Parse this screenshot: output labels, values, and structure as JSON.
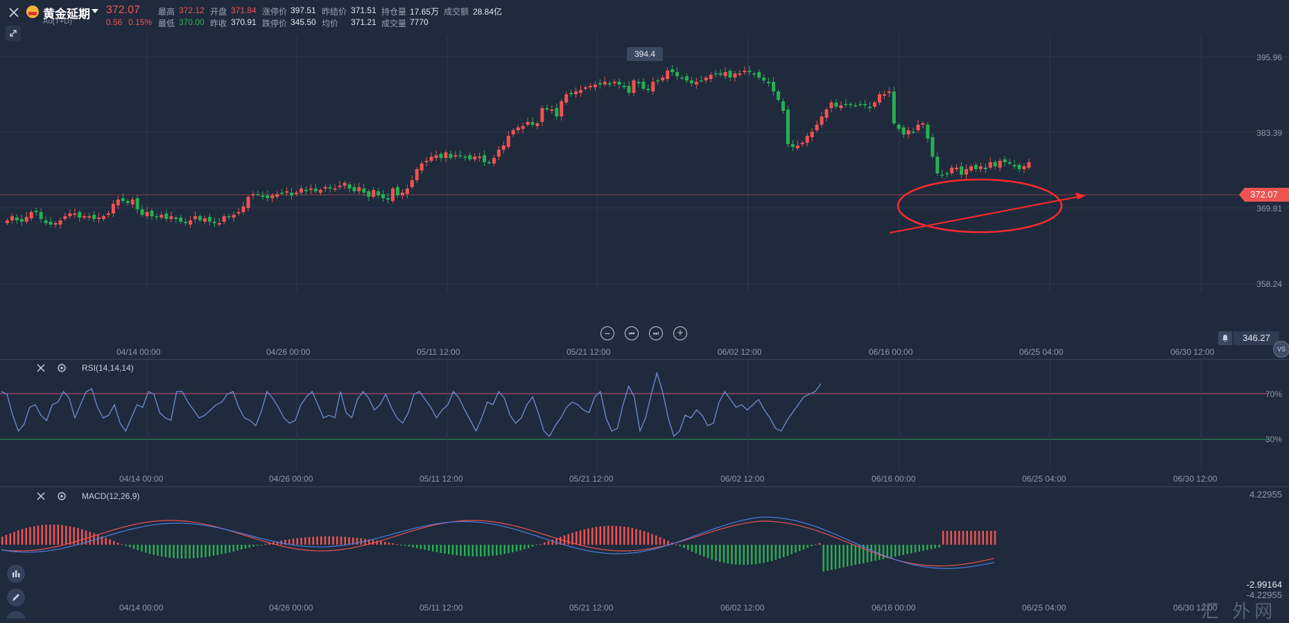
{
  "header": {
    "title": "黄金延期",
    "code": "Au(T+D)",
    "last_price": "372.07",
    "change": "0.56",
    "change_pct": "0.15%",
    "stats": [
      {
        "label": "最高",
        "value": "372.12",
        "color": "up"
      },
      {
        "label": "开盘",
        "value": "371.84",
        "color": "up"
      },
      {
        "label": "涨停价",
        "value": "397.51",
        "color": "neutral"
      },
      {
        "label": "昨结价",
        "value": "371.51",
        "color": "neutral"
      },
      {
        "label": "持仓量",
        "value": "17.65万",
        "color": "neutral"
      },
      {
        "label": "成交额",
        "value": "28.84亿",
        "color": "neutral"
      },
      {
        "label": "最低",
        "value": "370.00",
        "color": "dn"
      },
      {
        "label": "昨收",
        "value": "370.91",
        "color": "neutral"
      },
      {
        "label": "跌停价",
        "value": "345.50",
        "color": "neutral"
      },
      {
        "label": "均价",
        "value": "371.21",
        "color": "neutral"
      },
      {
        "label": "成交量",
        "value": "7770",
        "color": "neutral"
      }
    ]
  },
  "main_chart": {
    "y_ticks": [
      "395.96",
      "383.39",
      "369.81",
      "358.24"
    ],
    "current_price_tag": "372.07",
    "bottom_price_tag": "346.27",
    "peak_label": "394.4",
    "x_ticks": [
      "04/14 00:00",
      "04/26 00:00",
      "05/11 12:00",
      "05/21 12:00",
      "06/02 12:00",
      "06/16 00:00",
      "06/25 04:00",
      "06/30 12:00"
    ]
  },
  "rsi_panel": {
    "title": "RSI(14,14,14)",
    "levels": [
      "70%",
      "30%"
    ],
    "x_ticks": [
      "04/14 00:00",
      "04/26 00:00",
      "05/11 12:00",
      "05/21 12:00",
      "06/02 12:00",
      "06/16 00:00",
      "06/25 04:00",
      "06/30 12:00"
    ]
  },
  "macd_panel": {
    "title": "MACD(12,26,9)",
    "top_value": "4.22955",
    "low_value": "-2.99164",
    "bottom_value": "-4.22955",
    "x_ticks": [
      "04/14 00:00",
      "04/26 00:00",
      "05/11 12:00",
      "05/21 12:00",
      "06/02 12:00",
      "06/16 00:00",
      "06/25 04:00",
      "06/30 12:00"
    ]
  },
  "controls": {
    "zoom_out": "−",
    "prev": "⏮",
    "next": "⏭",
    "zoom_in": "+"
  },
  "side_badge": "VS",
  "watermark": "汇 外网",
  "colors": {
    "bg": "#1f2a3d",
    "up": "#ef5350",
    "down": "#26b050",
    "rsi_line": "#6f8fd1",
    "macd_dif": "#ef5350",
    "macd_dea": "#4c7fe0",
    "annotation": "#ff2a2a"
  }
}
